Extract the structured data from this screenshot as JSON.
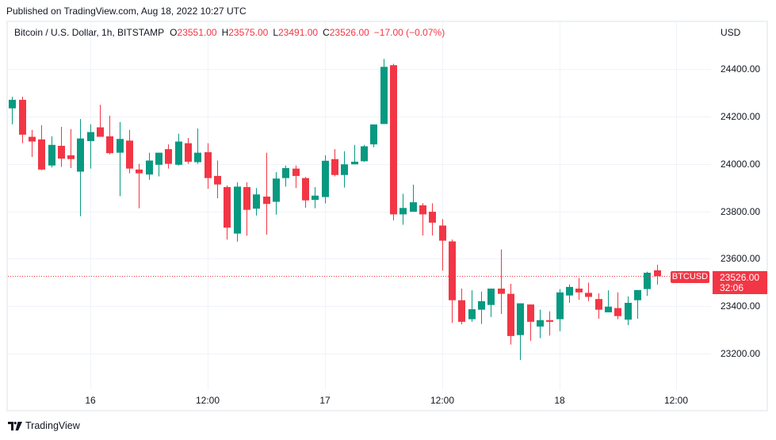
{
  "header": {
    "published": "Published on TradingView.com, Aug 18, 2022 10:27 UTC"
  },
  "legend": {
    "title": "Bitcoin / U.S. Dollar, 1h, BITSTAMP",
    "o_label": "O",
    "o_value": "23551.00",
    "h_label": "H",
    "h_value": "23575.00",
    "l_label": "L",
    "l_value": "23491.00",
    "c_label": "C",
    "c_value": "23526.00",
    "change": "−17.00 (−0.07%)"
  },
  "price_axis": {
    "currency": "USD",
    "labels": [
      "24400.00",
      "24200.00",
      "24000.00",
      "23800.00",
      "23600.00",
      "23400.00",
      "23200.00"
    ]
  },
  "time_axis": {
    "labels": [
      "16",
      "12:00",
      "17",
      "12:00",
      "18",
      "12:00"
    ],
    "tick_candle_index": [
      8,
      20,
      32,
      44,
      56,
      68
    ]
  },
  "last_price": {
    "symbol": "BTCUSD",
    "price": "23526.00",
    "countdown": "32:06"
  },
  "footer": {
    "brand": "TradingView"
  },
  "colors": {
    "up": "#089981",
    "down": "#f23645",
    "text": "#131722",
    "grid": "#f0f3fa",
    "frame": "#eef0f4"
  },
  "chart_data": {
    "type": "candlestick",
    "title": "Bitcoin / U.S. Dollar, 1h, BITSTAMP",
    "xlabel": "",
    "ylabel": "USD",
    "ylim": [
      23200,
      24400
    ],
    "grid": true,
    "legend_position": "top-left",
    "series": [
      {
        "name": "BTCUSD",
        "fields": [
          "open",
          "high",
          "low",
          "close"
        ]
      }
    ],
    "x": [
      "Aug 15 16:00",
      "Aug 15 17:00",
      "Aug 15 18:00",
      "Aug 15 19:00",
      "Aug 15 20:00",
      "Aug 15 21:00",
      "Aug 15 22:00",
      "Aug 15 23:00",
      "Aug 16 00:00",
      "Aug 16 01:00",
      "Aug 16 02:00",
      "Aug 16 03:00",
      "Aug 16 04:00",
      "Aug 16 05:00",
      "Aug 16 06:00",
      "Aug 16 07:00",
      "Aug 16 08:00",
      "Aug 16 09:00",
      "Aug 16 10:00",
      "Aug 16 11:00",
      "Aug 16 12:00",
      "Aug 16 13:00",
      "Aug 16 14:00",
      "Aug 16 15:00",
      "Aug 16 16:00",
      "Aug 16 17:00",
      "Aug 16 18:00",
      "Aug 16 19:00",
      "Aug 16 20:00",
      "Aug 16 21:00",
      "Aug 16 22:00",
      "Aug 16 23:00",
      "Aug 17 00:00",
      "Aug 17 01:00",
      "Aug 17 02:00",
      "Aug 17 03:00",
      "Aug 17 04:00",
      "Aug 17 05:00",
      "Aug 17 06:00",
      "Aug 17 07:00",
      "Aug 17 08:00",
      "Aug 17 09:00",
      "Aug 17 10:00",
      "Aug 17 11:00",
      "Aug 17 12:00",
      "Aug 17 13:00",
      "Aug 17 14:00",
      "Aug 17 15:00",
      "Aug 17 16:00",
      "Aug 17 17:00",
      "Aug 17 18:00",
      "Aug 17 19:00",
      "Aug 17 20:00",
      "Aug 17 21:00",
      "Aug 17 22:00",
      "Aug 17 23:00",
      "Aug 18 00:00",
      "Aug 18 01:00",
      "Aug 18 02:00",
      "Aug 18 03:00",
      "Aug 18 04:00",
      "Aug 18 05:00",
      "Aug 18 06:00",
      "Aug 18 07:00",
      "Aug 18 08:00",
      "Aug 18 09:00",
      "Aug 18 10:00"
    ],
    "ohlc": [
      [
        24234,
        24283,
        24167,
        24270
      ],
      [
        24270,
        24283,
        24087,
        24123
      ],
      [
        24114,
        24143,
        24029,
        24094
      ],
      [
        24103,
        24163,
        23973,
        23976
      ],
      [
        23993,
        24116,
        23985,
        24080
      ],
      [
        24076,
        24156,
        23987,
        24022
      ],
      [
        24036,
        24147,
        23982,
        24020
      ],
      [
        23967,
        24189,
        23779,
        24107
      ],
      [
        24096,
        24167,
        23980,
        24134
      ],
      [
        24154,
        24249,
        24114,
        24114
      ],
      [
        24116,
        24203,
        24040,
        24045
      ],
      [
        24047,
        24176,
        23864,
        24105
      ],
      [
        24098,
        24143,
        23960,
        23980
      ],
      [
        23976,
        24000,
        23813,
        23960
      ],
      [
        23955,
        24047,
        23933,
        24014
      ],
      [
        23996,
        24047,
        23947,
        24047
      ],
      [
        24062,
        24082,
        23980,
        24000
      ],
      [
        23996,
        24127,
        23993,
        24094
      ],
      [
        24087,
        24109,
        24000,
        24009
      ],
      [
        24007,
        24149,
        24000,
        24047
      ],
      [
        24049,
        24087,
        23895,
        23940
      ],
      [
        23949,
        24014,
        23855,
        23913
      ],
      [
        23902,
        23909,
        23681,
        23731
      ],
      [
        23706,
        23922,
        23672,
        23904
      ],
      [
        23902,
        23922,
        23697,
        23806
      ],
      [
        23811,
        23898,
        23782,
        23871
      ],
      [
        23862,
        24047,
        23702,
        23831
      ],
      [
        23840,
        23965,
        23786,
        23938
      ],
      [
        23940,
        23993,
        23904,
        23982
      ],
      [
        23980,
        23993,
        23898,
        23949
      ],
      [
        23940,
        23945,
        23815,
        23846
      ],
      [
        23848,
        23902,
        23813,
        23866
      ],
      [
        23860,
        24036,
        23833,
        24013
      ],
      [
        24020,
        24062,
        23947,
        23953
      ],
      [
        23953,
        24053,
        23900,
        23998
      ],
      [
        23998,
        24080,
        23998,
        24009
      ],
      [
        24011,
        24080,
        24008,
        24074
      ],
      [
        24082,
        24166,
        24070,
        24166
      ],
      [
        24168,
        24442,
        24168,
        24409
      ],
      [
        24416,
        24422,
        23761,
        23787
      ],
      [
        23787,
        23874,
        23743,
        23814
      ],
      [
        23798,
        23912,
        23798,
        23838
      ],
      [
        23825,
        23834,
        23698,
        23787
      ],
      [
        23798,
        23834,
        23698,
        23752
      ],
      [
        23740,
        23767,
        23550,
        23676
      ],
      [
        23673,
        23681,
        23329,
        23425
      ],
      [
        23425,
        23474,
        23323,
        23334
      ],
      [
        23345,
        23467,
        23334,
        23387
      ],
      [
        23385,
        23461,
        23325,
        23421
      ],
      [
        23405,
        23474,
        23354,
        23474
      ],
      [
        23474,
        23639,
        23367,
        23452
      ],
      [
        23452,
        23494,
        23238,
        23274
      ],
      [
        23278,
        23412,
        23173,
        23412
      ],
      [
        23407,
        23407,
        23254,
        23334
      ],
      [
        23314,
        23385,
        23265,
        23341
      ],
      [
        23341,
        23378,
        23276,
        23334
      ],
      [
        23345,
        23472,
        23294,
        23458
      ],
      [
        23445,
        23492,
        23414,
        23481
      ],
      [
        23474,
        23519,
        23427,
        23458
      ],
      [
        23456,
        23499,
        23421,
        23439
      ],
      [
        23430,
        23454,
        23347,
        23385
      ],
      [
        23374,
        23467,
        23374,
        23398
      ],
      [
        23392,
        23458,
        23345,
        23358
      ],
      [
        23343,
        23441,
        23320,
        23414
      ],
      [
        23425,
        23468,
        23347,
        23468
      ],
      [
        23472,
        23545,
        23443,
        23541
      ],
      [
        23551,
        23575,
        23491,
        23526
      ]
    ],
    "last_price": 23526.0,
    "annotations": [
      "BTCUSD 23526.00 (32:06)"
    ]
  }
}
